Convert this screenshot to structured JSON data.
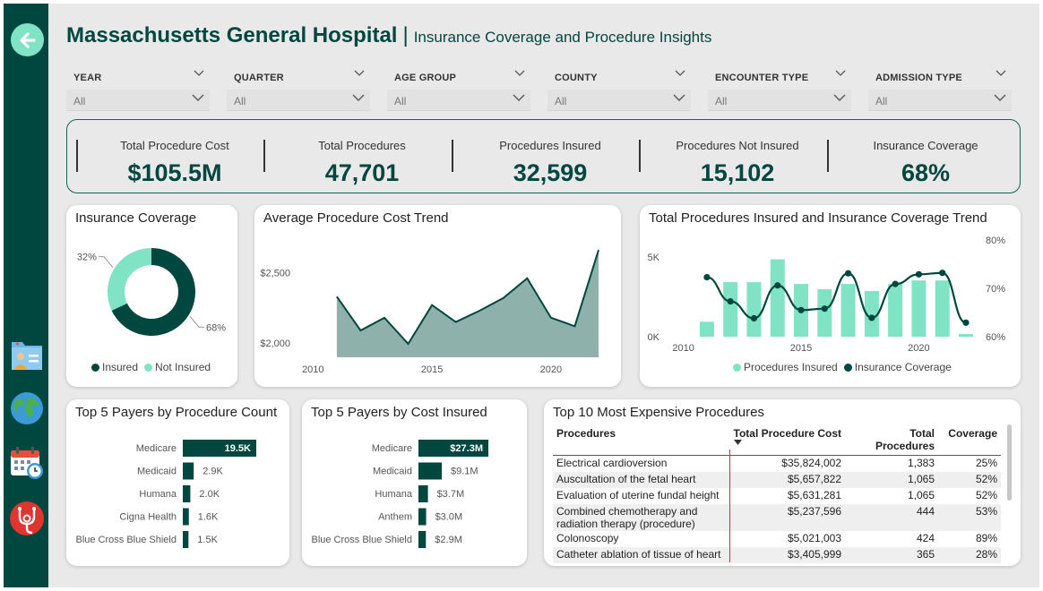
{
  "header": {
    "title": "Massachusetts General Hospital",
    "separator": "|",
    "subtitle": "Insurance Coverage and Procedure Insights"
  },
  "filters": [
    {
      "label": "YEAR",
      "value": "All"
    },
    {
      "label": "QUARTER",
      "value": "All"
    },
    {
      "label": "AGE GROUP",
      "value": "All"
    },
    {
      "label": "COUNTY",
      "value": "All"
    },
    {
      "label": "ENCOUNTER TYPE",
      "value": "All"
    },
    {
      "label": "ADMISSION TYPE",
      "value": "All"
    }
  ],
  "kpis": [
    {
      "label": "Total Procedure Cost",
      "value": "$105.5M"
    },
    {
      "label": "Total Procedures",
      "value": "47,701"
    },
    {
      "label": "Procedures Insured",
      "value": "32,599"
    },
    {
      "label": "Procedures Not Insured",
      "value": "15,102"
    },
    {
      "label": "Insurance Coverage",
      "value": "68%"
    }
  ],
  "sidebar_icons": [
    "back-arrow-icon",
    "patient-folder-icon",
    "globe-icon",
    "calendar-clock-icon",
    "stethoscope-icon"
  ],
  "colors": {
    "dark": "#00473f",
    "light": "#7fe3c4",
    "area": "#8fb1ab"
  },
  "chart_data": [
    {
      "type": "pie",
      "title": "Insurance Coverage",
      "slices": [
        {
          "name": "Insured",
          "value": 68,
          "label": "68%",
          "color": "#00473f"
        },
        {
          "name": "Not Insured",
          "value": 32,
          "label": "32%",
          "color": "#7fe3c4"
        }
      ],
      "legend_position": "bottom"
    },
    {
      "type": "area",
      "title": "Average Procedure Cost Trend",
      "x": [
        2011,
        2012,
        2013,
        2014,
        2015,
        2016,
        2017,
        2018,
        2019,
        2020,
        2021,
        2022
      ],
      "y": [
        2330,
        2090,
        2180,
        1995,
        2270,
        2150,
        2230,
        2320,
        2460,
        2180,
        2120,
        2660
      ],
      "xticks": [
        "2010",
        "2015",
        "2020"
      ],
      "yticks": [
        "$2,000",
        "$2,500"
      ],
      "ylim": [
        1900,
        2750
      ]
    },
    {
      "type": "bar",
      "title": "Total Procedures Insured and Insurance Coverage Trend",
      "x": [
        2011,
        2012,
        2013,
        2014,
        2015,
        2016,
        2017,
        2018,
        2019,
        2020,
        2021,
        2022
      ],
      "series": [
        {
          "name": "Procedures Insured",
          "type": "bar",
          "axis": "left",
          "values": [
            850,
            3100,
            3100,
            4400,
            3000,
            2700,
            3000,
            2600,
            3000,
            3200,
            3200,
            150
          ]
        },
        {
          "name": "Insurance Coverage",
          "type": "line",
          "axis": "right",
          "values": [
            72.3,
            67.3,
            63.8,
            70.6,
            65.5,
            65.8,
            73.1,
            63.9,
            70.9,
            72.9,
            73.2,
            62.9
          ]
        }
      ],
      "xticks": [
        "2010",
        "2015",
        "2020"
      ],
      "yticks_left": [
        "0K",
        "5K"
      ],
      "ylim_left": [
        0,
        5500
      ],
      "yticks_right": [
        "60%",
        "70%",
        "80%"
      ],
      "ylim_right": [
        60,
        80
      ],
      "legend_position": "bottom"
    },
    {
      "type": "bar",
      "orientation": "horizontal",
      "title": "Top 5 Payers by Procedure Count",
      "categories": [
        "Medicare",
        "Medicaid",
        "Humana",
        "Cigna Health",
        "Blue Cross Blue Shield"
      ],
      "values": [
        19500,
        2900,
        2000,
        1600,
        1500
      ],
      "labels": [
        "19.5K",
        "2.9K",
        "2.0K",
        "1.6K",
        "1.5K"
      ]
    },
    {
      "type": "bar",
      "orientation": "horizontal",
      "title": "Top 5 Payers by Cost Insured",
      "categories": [
        "Medicare",
        "Medicaid",
        "Humana",
        "Anthem",
        "Blue Cross Blue Shield"
      ],
      "values": [
        27.3,
        9.1,
        3.7,
        3.0,
        2.9
      ],
      "labels": [
        "$27.3M",
        "$9.1M",
        "$3.7M",
        "$3.0M",
        "$2.9M"
      ]
    },
    {
      "type": "table",
      "title": "Top 10 Most Expensive Procedures",
      "columns": [
        "Procedures",
        "Total Procedure Cost",
        "Total Procedures",
        "Coverage"
      ],
      "rows": [
        [
          "Electrical cardioversion",
          "$35,824,002",
          "1,383",
          "25%"
        ],
        [
          "Auscultation of the fetal heart",
          "$5,657,822",
          "1,065",
          "52%"
        ],
        [
          "Evaluation of uterine fundal height",
          "$5,631,281",
          "1,065",
          "52%"
        ],
        [
          "Combined chemotherapy and radiation therapy (procedure)",
          "$5,237,596",
          "444",
          "53%"
        ],
        [
          "Colonoscopy",
          "$5,021,003",
          "424",
          "89%"
        ],
        [
          "Catheter ablation of tissue of heart",
          "$3,405,999",
          "365",
          "28%"
        ]
      ]
    }
  ]
}
